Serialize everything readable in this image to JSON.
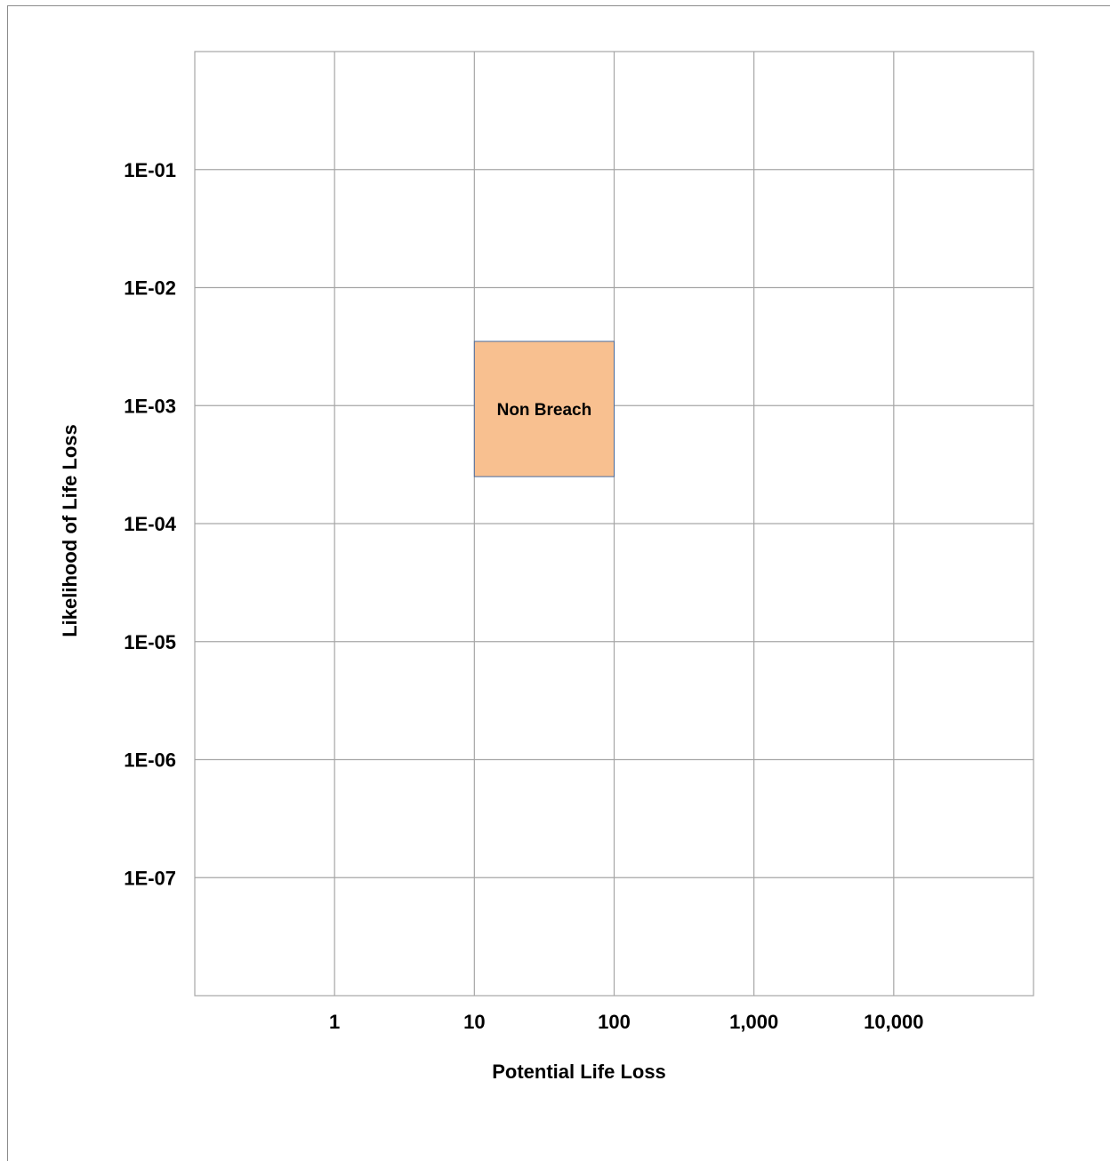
{
  "chart_data": {
    "type": "risk-matrix",
    "xlabel": "Potential Life Loss",
    "ylabel": "Likelihood of Life Loss",
    "x_scale": "log",
    "y_scale": "log",
    "xlim": [
      0.1,
      100000
    ],
    "ylim": [
      1e-08,
      1
    ],
    "x_ticks": [
      {
        "value": 1,
        "label": "1"
      },
      {
        "value": 10,
        "label": "10"
      },
      {
        "value": 100,
        "label": "100"
      },
      {
        "value": 1000,
        "label": "1,000"
      },
      {
        "value": 10000,
        "label": "10,000"
      }
    ],
    "y_ticks": [
      {
        "value": 0.1,
        "label": "1E-01"
      },
      {
        "value": 0.01,
        "label": "1E-02"
      },
      {
        "value": 0.001,
        "label": "1E-03"
      },
      {
        "value": 0.0001,
        "label": "1E-04"
      },
      {
        "value": 1e-05,
        "label": "1E-05"
      },
      {
        "value": 1e-06,
        "label": "1E-06"
      },
      {
        "value": 1e-07,
        "label": "1E-07"
      }
    ],
    "grid": true,
    "regions": [
      {
        "label": "Non Breach",
        "x_min": 10,
        "x_max": 100,
        "y_min": 0.00025,
        "y_max": 0.0035,
        "color": "#f8c090",
        "border": "#4a6da0"
      }
    ]
  }
}
